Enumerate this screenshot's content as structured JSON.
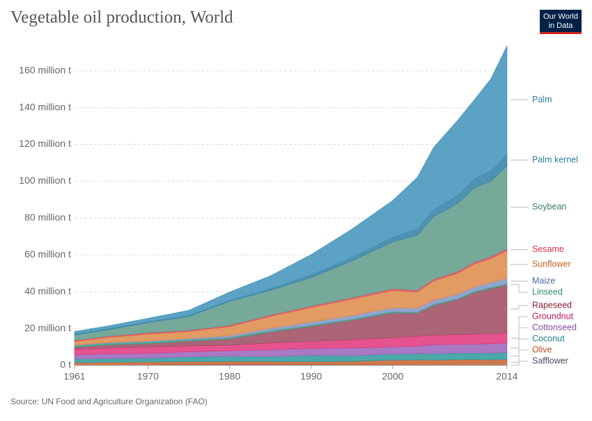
{
  "chart_data": {
    "type": "stacked-area",
    "title": "Vegetable oil production, World",
    "source": "Source: UN Food and Agriculture Organization (FAO)",
    "logo": [
      "Our World",
      "in Data"
    ],
    "x": [
      1961,
      1965,
      1970,
      1975,
      1980,
      1985,
      1990,
      1995,
      2000,
      2003,
      2005,
      2008,
      2010,
      2012,
      2014
    ],
    "xlim": [
      1961,
      2014
    ],
    "xticks": [
      1961,
      1970,
      1980,
      1990,
      2000,
      2014
    ],
    "ylim": [
      0,
      175
    ],
    "yticks": [
      {
        "value": 0,
        "label": "0 t"
      },
      {
        "value": 20,
        "label": "20 million t"
      },
      {
        "value": 40,
        "label": "40 million t"
      },
      {
        "value": 60,
        "label": "60 million t"
      },
      {
        "value": 80,
        "label": "80 million t"
      },
      {
        "value": 100,
        "label": "100 million t"
      },
      {
        "value": 120,
        "label": "120 million t"
      },
      {
        "value": 140,
        "label": "140 million t"
      },
      {
        "value": 160,
        "label": "160 million t"
      }
    ],
    "grid": true,
    "series": [
      {
        "name": "Safflower",
        "color": "#5a5a7e",
        "label_color": "#4a4a6a",
        "values": [
          0.2,
          0.25,
          0.3,
          0.4,
          0.4,
          0.4,
          0.4,
          0.35,
          0.3,
          0.25,
          0.25,
          0.25,
          0.2,
          0.2,
          0.15
        ]
      },
      {
        "name": "Olive",
        "color": "#c8602e",
        "label_color": "#c04a20",
        "values": [
          1.3,
          1.4,
          1.5,
          1.6,
          1.7,
          1.7,
          1.6,
          1.8,
          2.5,
          2.8,
          2.6,
          2.9,
          3.0,
          2.8,
          3.1
        ]
      },
      {
        "name": "Coconut",
        "color": "#2a9a9a",
        "label_color": "#20808a",
        "values": [
          1.9,
          2.0,
          2.1,
          2.6,
          2.8,
          2.6,
          3.4,
          3.1,
          3.3,
          3.3,
          3.4,
          3.5,
          3.5,
          3.6,
          3.6
        ]
      },
      {
        "name": "Cottonseed",
        "color": "#9a62b8",
        "label_color": "#8a4aa0",
        "values": [
          2.3,
          2.6,
          2.6,
          2.8,
          3.0,
          3.8,
          3.8,
          4.2,
          3.9,
          4.1,
          5.0,
          4.8,
          4.8,
          5.2,
          5.2
        ]
      },
      {
        "name": "Groundnut",
        "color": "#e0357a",
        "label_color": "#c0185a",
        "values": [
          3.0,
          3.2,
          3.4,
          3.2,
          3.0,
          3.7,
          3.8,
          4.5,
          5.0,
          5.3,
          5.2,
          5.3,
          5.5,
          5.4,
          5.5
        ]
      },
      {
        "name": "Rapeseed",
        "color": "#9c4a5e",
        "label_color": "#8a2030",
        "values": [
          1.2,
          1.6,
          1.9,
          2.5,
          3.5,
          5.8,
          8.1,
          10.5,
          13.5,
          12.5,
          16.0,
          19.0,
          22.5,
          24.5,
          26.0
        ]
      },
      {
        "name": "Linseed",
        "color": "#3a9a7e",
        "label_color": "#2a8a6a",
        "values": [
          0.8,
          0.9,
          0.9,
          0.8,
          0.8,
          0.8,
          0.7,
          0.7,
          0.7,
          0.6,
          0.7,
          0.6,
          0.6,
          0.6,
          0.7
        ]
      },
      {
        "name": "Maize",
        "color": "#7f95c4",
        "label_color": "#4a6aa0",
        "values": [
          0.3,
          0.4,
          0.5,
          0.7,
          0.9,
          1.3,
          1.7,
          1.9,
          2.0,
          2.1,
          2.2,
          2.3,
          2.4,
          2.6,
          3.0
        ]
      },
      {
        "name": "Sunflower",
        "color": "#dd8a48",
        "label_color": "#c0601e",
        "values": [
          1.9,
          2.8,
          3.8,
          3.8,
          5.0,
          6.5,
          7.9,
          8.9,
          9.5,
          8.9,
          10.5,
          11.5,
          12.5,
          13.0,
          15.0
        ]
      },
      {
        "name": "Sesame",
        "color": "#e04a5a",
        "label_color": "#d8304a",
        "values": [
          0.6,
          0.6,
          0.7,
          0.6,
          0.6,
          0.7,
          0.8,
          0.8,
          0.9,
          0.9,
          0.9,
          0.9,
          1.0,
          1.1,
          1.1
        ]
      },
      {
        "name": "Soybean",
        "color": "#5e9a88",
        "label_color": "#3a7a6a",
        "values": [
          3.0,
          3.5,
          5.5,
          7.5,
          13.0,
          13.5,
          15.5,
          20.0,
          25.5,
          30.0,
          34.0,
          37.0,
          40.5,
          41.0,
          45.0
        ]
      },
      {
        "name": "Palm kernel",
        "color": "#2f7fa6",
        "label_color": "#2a7ba0",
        "values": [
          0.4,
          0.4,
          0.4,
          0.5,
          0.6,
          0.8,
          1.4,
          1.8,
          2.5,
          3.3,
          3.6,
          4.3,
          4.8,
          5.5,
          6.3
        ]
      },
      {
        "name": "Palm",
        "color": "#3e92ba",
        "label_color": "#2a7ba0",
        "values": [
          1.5,
          1.7,
          2.0,
          2.9,
          4.5,
          7.0,
          11.1,
          15.5,
          20.0,
          28.0,
          34.0,
          41.0,
          43.0,
          50.0,
          59.0
        ]
      }
    ]
  }
}
